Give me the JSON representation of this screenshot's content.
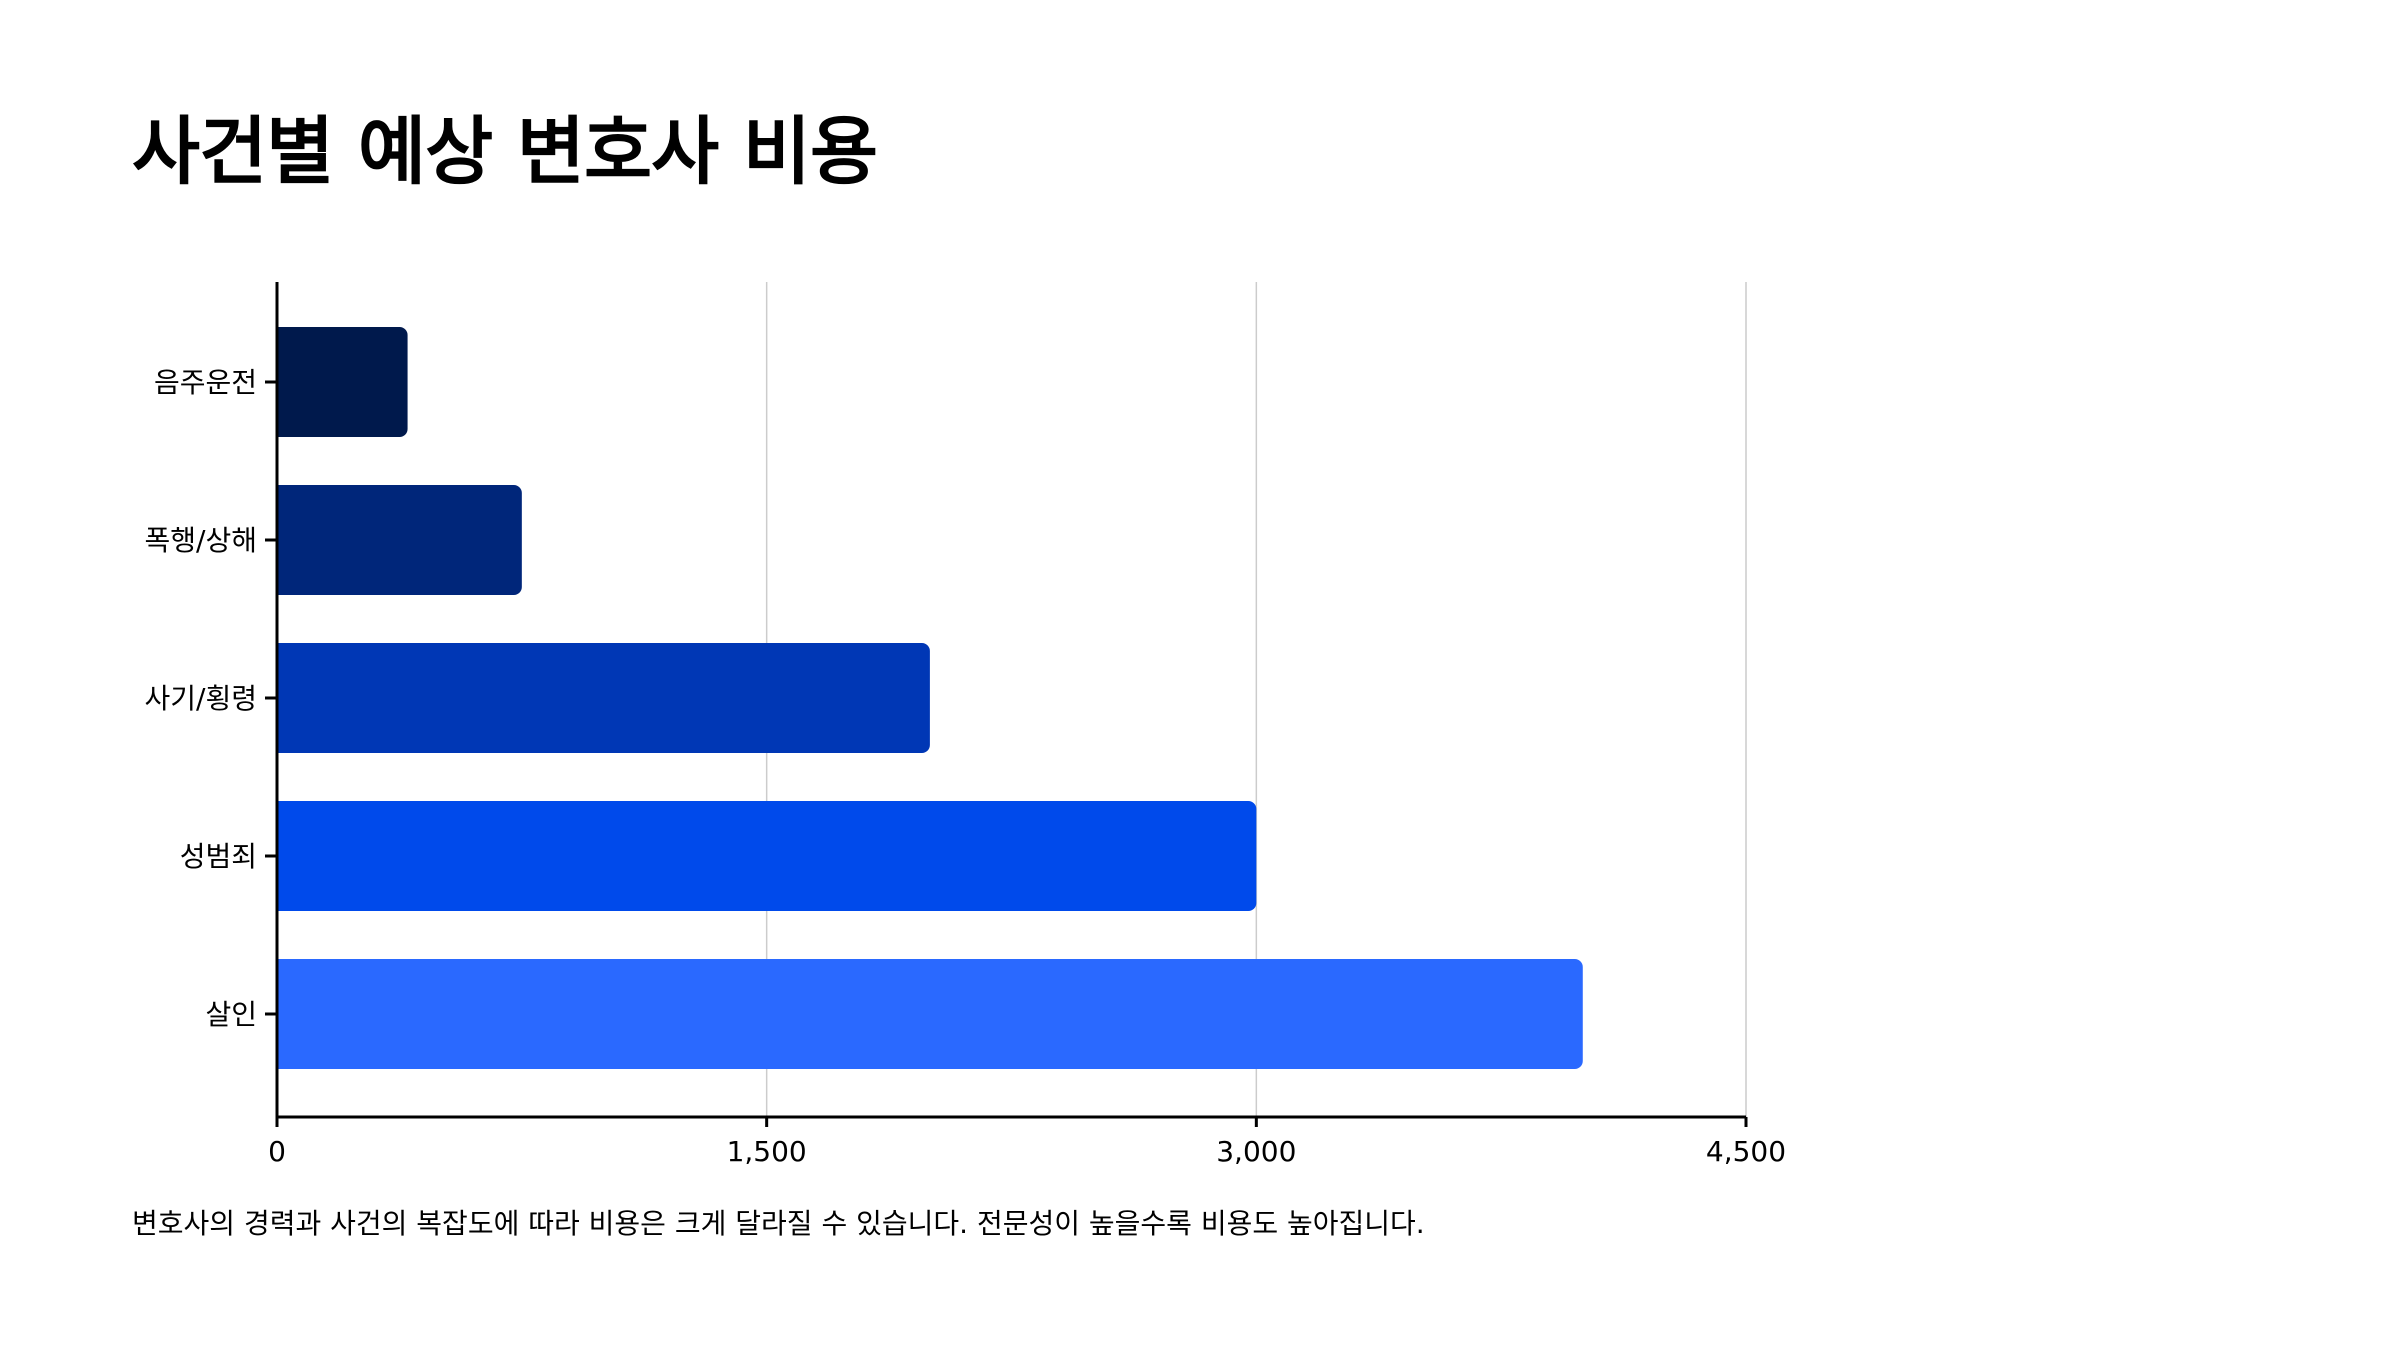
{
  "title": "사건별 예상 변호사 비용",
  "footnote": "변호사의 경력과 사건의 복잡도에 따라 비용은 크게 달라질 수 있습니다. 전문성이 높을수록 비용도 높아집니다.",
  "chart_data": {
    "type": "bar",
    "orientation": "horizontal",
    "title": "사건별 예상 변호사 비용",
    "xlabel": "",
    "ylabel": "",
    "categories": [
      "음주운전",
      "폭행/상해",
      "사기/횡령",
      "성범죄",
      "살인"
    ],
    "values": [
      400,
      750,
      2000,
      3000,
      4000
    ],
    "colors": [
      "#00194c",
      "#00267a",
      "#0037b5",
      "#004aeb",
      "#2a69ff"
    ],
    "xlim": [
      0,
      4500
    ],
    "x_ticks": [
      0,
      1500,
      3000,
      4500
    ],
    "x_tick_labels": [
      "0",
      "1,500",
      "3,000",
      "4,500"
    ],
    "grid": "vertical",
    "grid_color": "#cccccc",
    "legend": "none"
  }
}
